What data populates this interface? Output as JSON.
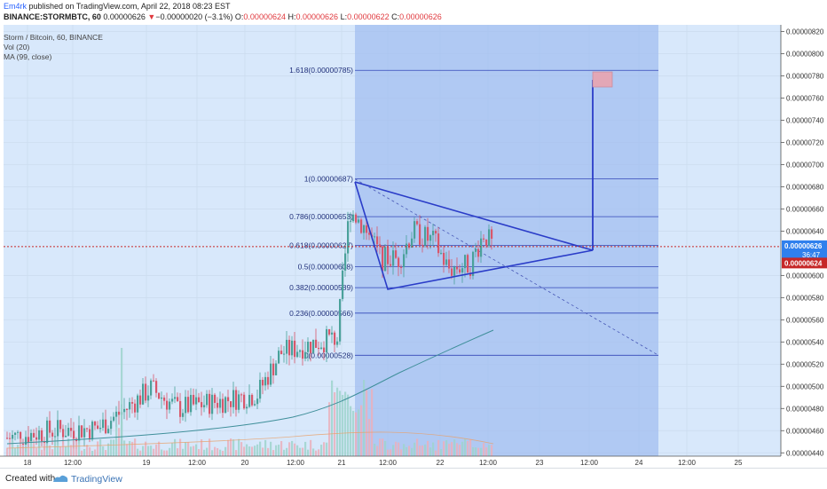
{
  "header": {
    "publisher": "Em4rk",
    "published_text": " published on TradingView.com, April 22, 2018 08:23 EST",
    "symbol_line": "BINANCE:STORMBTC, 60",
    "symbol_values": " 0.00000626 ",
    "change_arrow": "▼",
    "change": "−0.00000020 (−3.1%)",
    "o_label": " O:",
    "o": "0.00000624",
    "h_label": " H:",
    "h": "0.00000626",
    "l_label": " L:",
    "l": "0.00000622",
    "c_label": " C:",
    "c": "0.00000626"
  },
  "legend": {
    "title": "Storm / Bitcoin, 60, BINANCE",
    "vol": "Vol (20)",
    "ma": "MA (99, close)"
  },
  "footer": {
    "created_with": "Created with",
    "brand": "TradingView"
  },
  "colors": {
    "bg": "#d8e8fb",
    "up": "#4aa19a",
    "down": "#d8576b",
    "fib_fill": "#9fbcef",
    "fib_line": "#3347b8",
    "triangle": "#2a3cc8",
    "ma": "#3f8f9a",
    "price_tag": "#2f80ed",
    "last_tag": "#c62828",
    "target_box": "#e3a7b6"
  },
  "chart_data": {
    "type": "candlestick",
    "symbol": "BINANCE:STORMBTC",
    "timeframe": "60",
    "x_ticks": [
      "18",
      "12:00",
      "19",
      "12:00",
      "20",
      "12:00",
      "21",
      "12:00",
      "22",
      "12:00",
      "23",
      "12:00",
      "24",
      "12:00",
      "25"
    ],
    "y_ticks": [
      "0.00000820",
      "0.00000800",
      "0.00000780",
      "0.00000760",
      "0.00000740",
      "0.00000720",
      "0.00000700",
      "0.00000680",
      "0.00000660",
      "0.00000640",
      "0.00000600",
      "0.00000580",
      "0.00000560",
      "0.00000540",
      "0.00000520",
      "0.00000500",
      "0.00000480",
      "0.00000460",
      "0.00000440"
    ],
    "ylim": [
      4.37e-06,
      8.26e-06
    ],
    "last_price": "0.00000626",
    "last_price_sub": "36:47",
    "prev_price": "0.00000624",
    "fib_levels": [
      {
        "label": "1.618(0.00000785)",
        "ratio": 1.618,
        "value": 7.85e-06
      },
      {
        "label": "1(0.00000687)",
        "ratio": 1,
        "value": 6.87e-06
      },
      {
        "label": "0.786(0.00000653)",
        "ratio": 0.786,
        "value": 6.53e-06
      },
      {
        "label": "0.618(0.00000627)",
        "ratio": 0.618,
        "value": 6.27e-06
      },
      {
        "label": "0.5(0.00000608)",
        "ratio": 0.5,
        "value": 6.08e-06
      },
      {
        "label": "0.382(0.00000589)",
        "ratio": 0.382,
        "value": 5.89e-06
      },
      {
        "label": "0.236(0.00000566)",
        "ratio": 0.236,
        "value": 5.66e-06
      },
      {
        "label": "0(0.00000528)",
        "ratio": 0,
        "value": 5.28e-06
      }
    ]
  }
}
